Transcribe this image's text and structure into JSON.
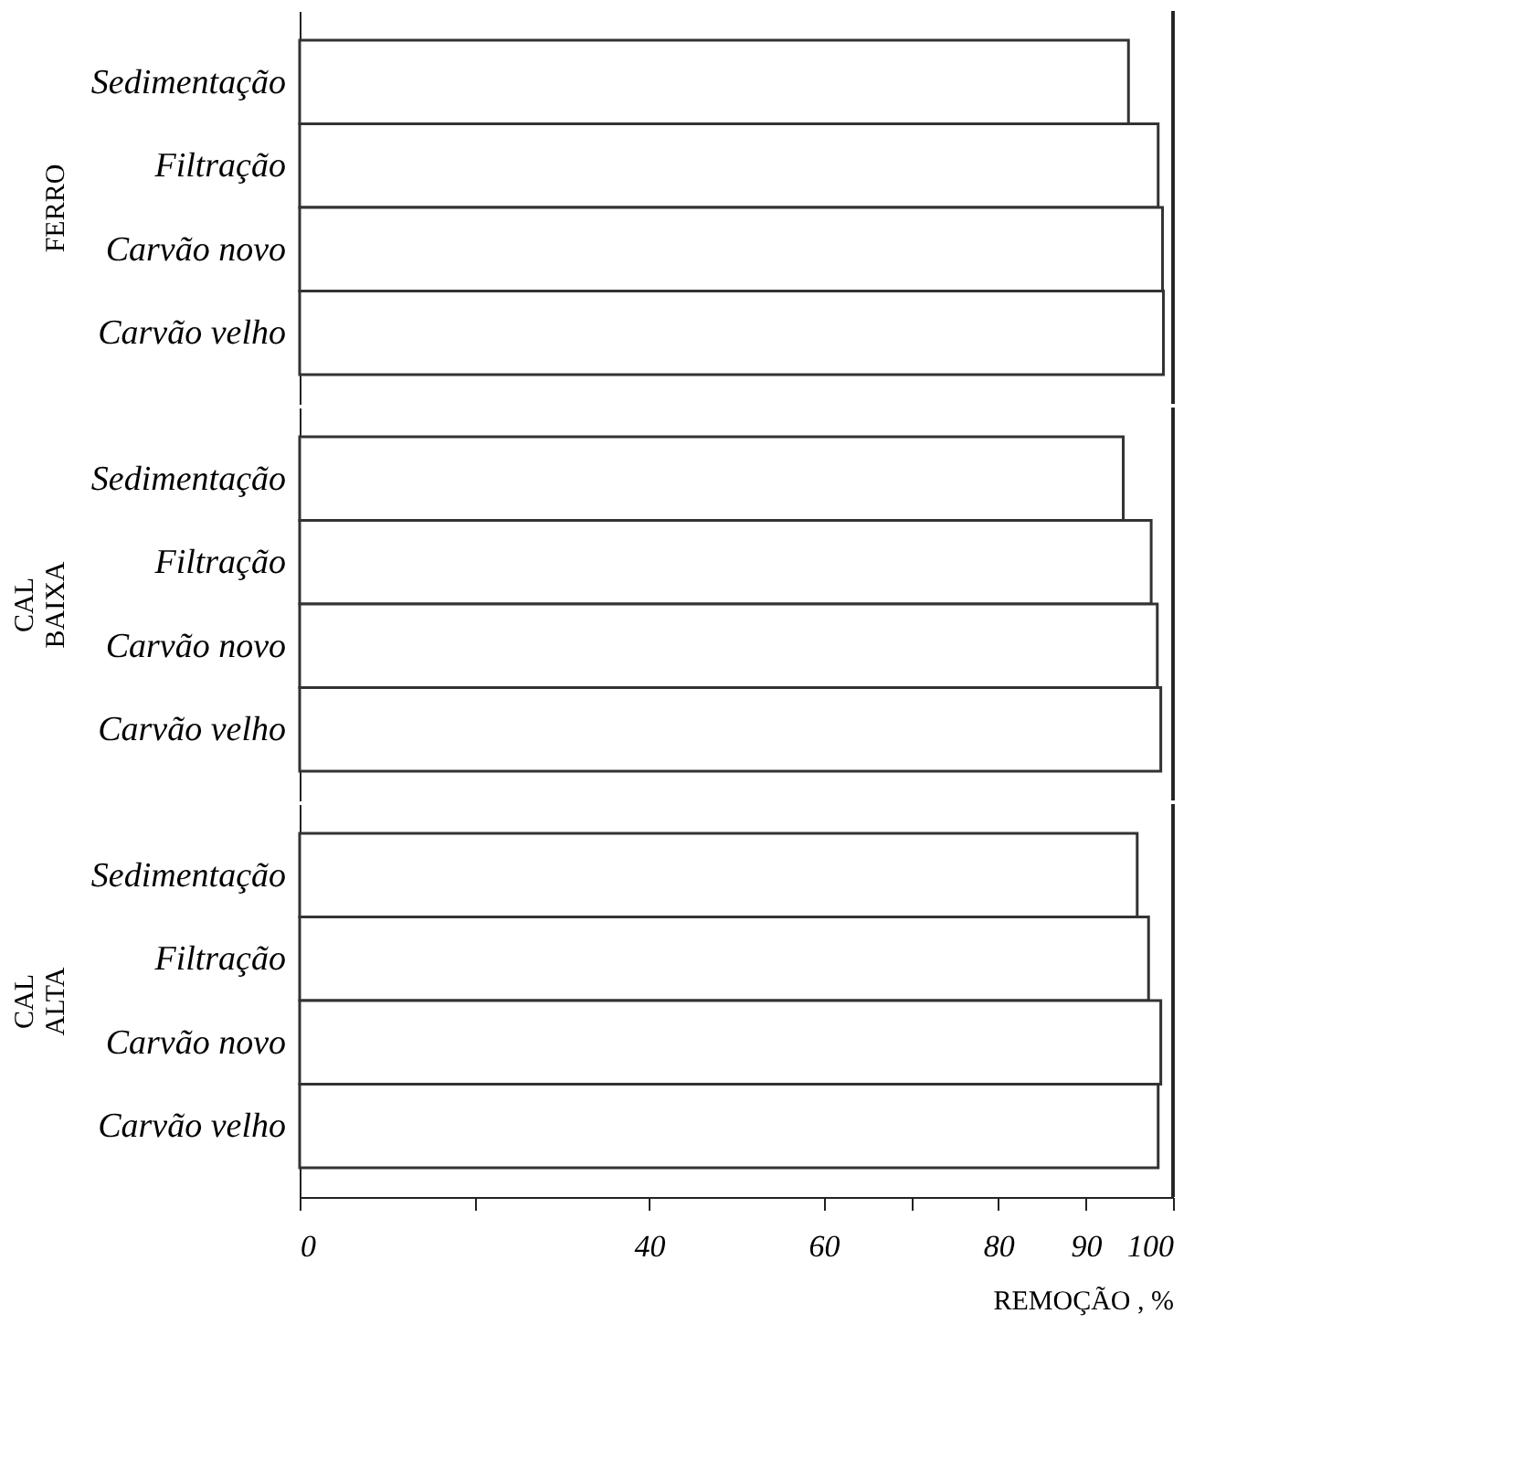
{
  "chart_data": [
    {
      "type": "bar",
      "orientation": "horizontal",
      "ylabel": "FERRO",
      "categories": [
        "Sedimentação",
        "Filtração",
        "Carvão novo",
        "Carvão velho"
      ],
      "values": [
        94.9,
        98.3,
        98.8,
        98.9
      ],
      "color": "#ffffff",
      "xlim": [
        0,
        100
      ],
      "grid": false,
      "tick_labels": "y"
    },
    {
      "type": "bar",
      "orientation": "horizontal",
      "ylabel": "CAL\nBAIXA",
      "categories": [
        "Sedimentação",
        "Filtração",
        "Carvão novo",
        "Carvão velho"
      ],
      "values": [
        94.3,
        97.5,
        98.2,
        98.6
      ],
      "color": "#ffffff",
      "xlim": [
        0,
        100
      ],
      "grid": false,
      "tick_labels": "y"
    },
    {
      "type": "bar",
      "orientation": "horizontal",
      "ylabel": "CAL\nALTA",
      "xlabel": "REMOÇÃO , %",
      "categories": [
        "Sedimentação",
        "Filtração",
        "Carvão novo",
        "Carvão velho"
      ],
      "values": [
        95.9,
        97.2,
        98.6,
        98.3
      ],
      "color": "#ffffff",
      "xlim": [
        0,
        100
      ],
      "xticks": [
        0,
        {
          "value": 20,
          "label": null
        },
        40,
        60,
        {
          "value": 70,
          "label": null
        },
        80,
        90,
        100
      ],
      "grid": false
    }
  ]
}
